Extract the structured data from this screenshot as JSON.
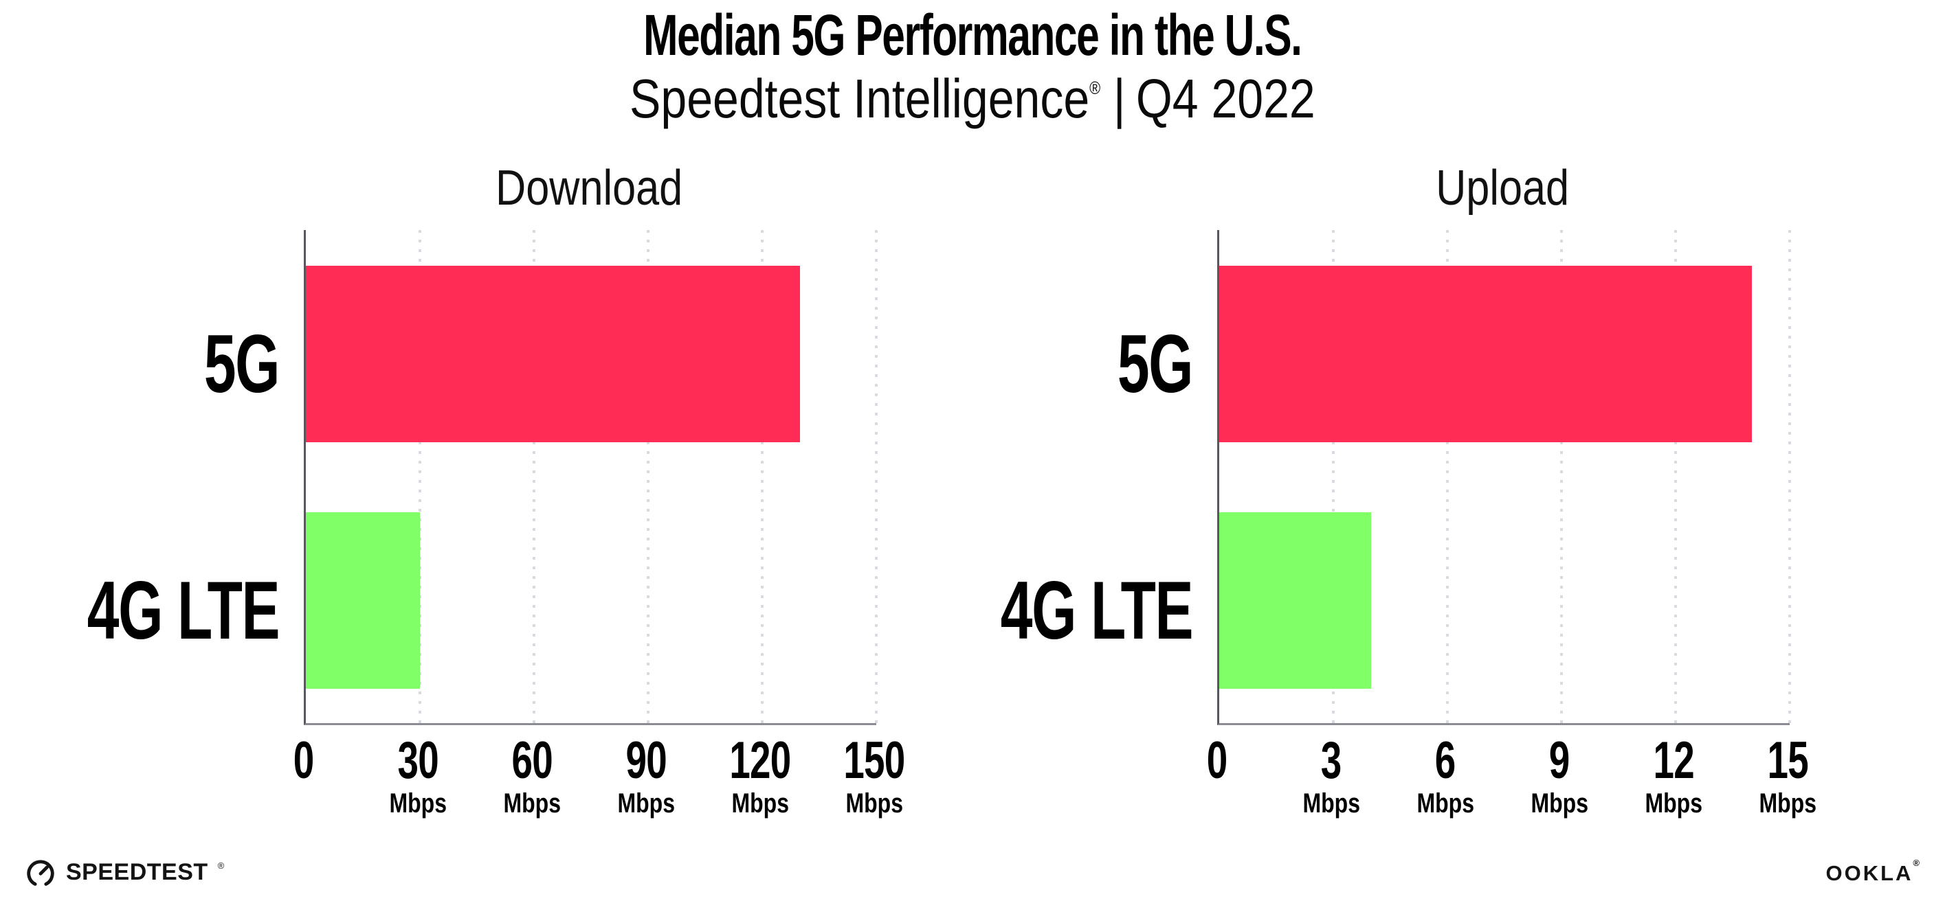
{
  "header": {
    "title": "Median 5G Performance in the U.S.",
    "subtitle_brand": "Speedtest Intelligence",
    "subtitle_reg": "®",
    "subtitle_divider": "|",
    "subtitle_period": "Q4 2022"
  },
  "colors": {
    "bar_5g": "#ff2d55",
    "bar_4g_lte": "#80ff66",
    "gridline": "#d9d9e4",
    "axis_left": "#57575f",
    "axis_bottom": "#8b8b93",
    "text": "#000000"
  },
  "chart_data": [
    {
      "type": "bar",
      "orientation": "horizontal",
      "title": "Download",
      "categories": [
        "5G",
        "4G LTE"
      ],
      "values": [
        130,
        30
      ],
      "unit": "Mbps",
      "xlim": [
        0,
        150
      ],
      "xticks": [
        0,
        30,
        60,
        90,
        120,
        150
      ],
      "grid": "vertical dotted",
      "legend": "none",
      "bar_colors": [
        "#ff2d55",
        "#80ff66"
      ]
    },
    {
      "type": "bar",
      "orientation": "horizontal",
      "title": "Upload",
      "categories": [
        "5G",
        "4G LTE"
      ],
      "values": [
        14,
        4
      ],
      "unit": "Mbps",
      "xlim": [
        0,
        15
      ],
      "xticks": [
        0,
        3,
        6,
        9,
        12,
        15
      ],
      "grid": "vertical dotted",
      "legend": "none",
      "bar_colors": [
        "#ff2d55",
        "#80ff66"
      ]
    }
  ],
  "footer": {
    "speedtest_label": "SPEEDTEST",
    "speedtest_mark": "®",
    "speedtest_icon": "gauge-icon",
    "ookla_label": "OOKLA",
    "ookla_mark": "®"
  }
}
